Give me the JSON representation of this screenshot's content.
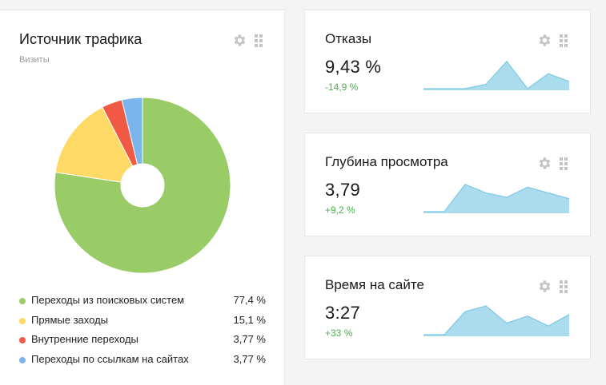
{
  "traffic": {
    "title": "Источник трафика",
    "subtitle": "Визиты",
    "settings_icon": "gear-icon",
    "drag_icon": "grip-icon",
    "chart_data": {
      "type": "pie",
      "donut": true,
      "legend": "bottom",
      "categories": [
        "Переходы из поисковых систем",
        "Прямые заходы",
        "Внутренние переходы",
        "Переходы по ссылкам на сайтах"
      ],
      "values": [
        77.4,
        15.1,
        3.77,
        3.77
      ],
      "value_labels": [
        "77,4 %",
        "15,1 %",
        "3,77 %",
        "3,77 %"
      ],
      "colors": [
        "#99cc66",
        "#ffd966",
        "#f05a45",
        "#7cb5ec"
      ]
    }
  },
  "metrics": [
    {
      "title": "Отказы",
      "value": "9,43 %",
      "delta": "-14,9 %",
      "chart_data": {
        "type": "area",
        "values": [
          0,
          0,
          0,
          0.15,
          0.95,
          0,
          0.52,
          0.25
        ],
        "color": "#abdcee"
      }
    },
    {
      "title": "Глубина просмотра",
      "value": "3,79",
      "delta": "+9,2 %",
      "chart_data": {
        "type": "area",
        "values": [
          0,
          0,
          0.95,
          0.65,
          0.5,
          0.85,
          0.65,
          0.45
        ],
        "color": "#abdcee"
      }
    },
    {
      "title": "Время на сайте",
      "value": "3:27",
      "delta": "+33 %",
      "chart_data": {
        "type": "area",
        "values": [
          0,
          0,
          0.8,
          1,
          0.4,
          0.65,
          0.3,
          0.7
        ],
        "color": "#abdcee"
      }
    }
  ],
  "colors": {
    "delta_positive": "#4caf50",
    "spark_fill": "#abdcee",
    "spark_line": "#7cc8e3",
    "icon": "#c4c4c4"
  }
}
